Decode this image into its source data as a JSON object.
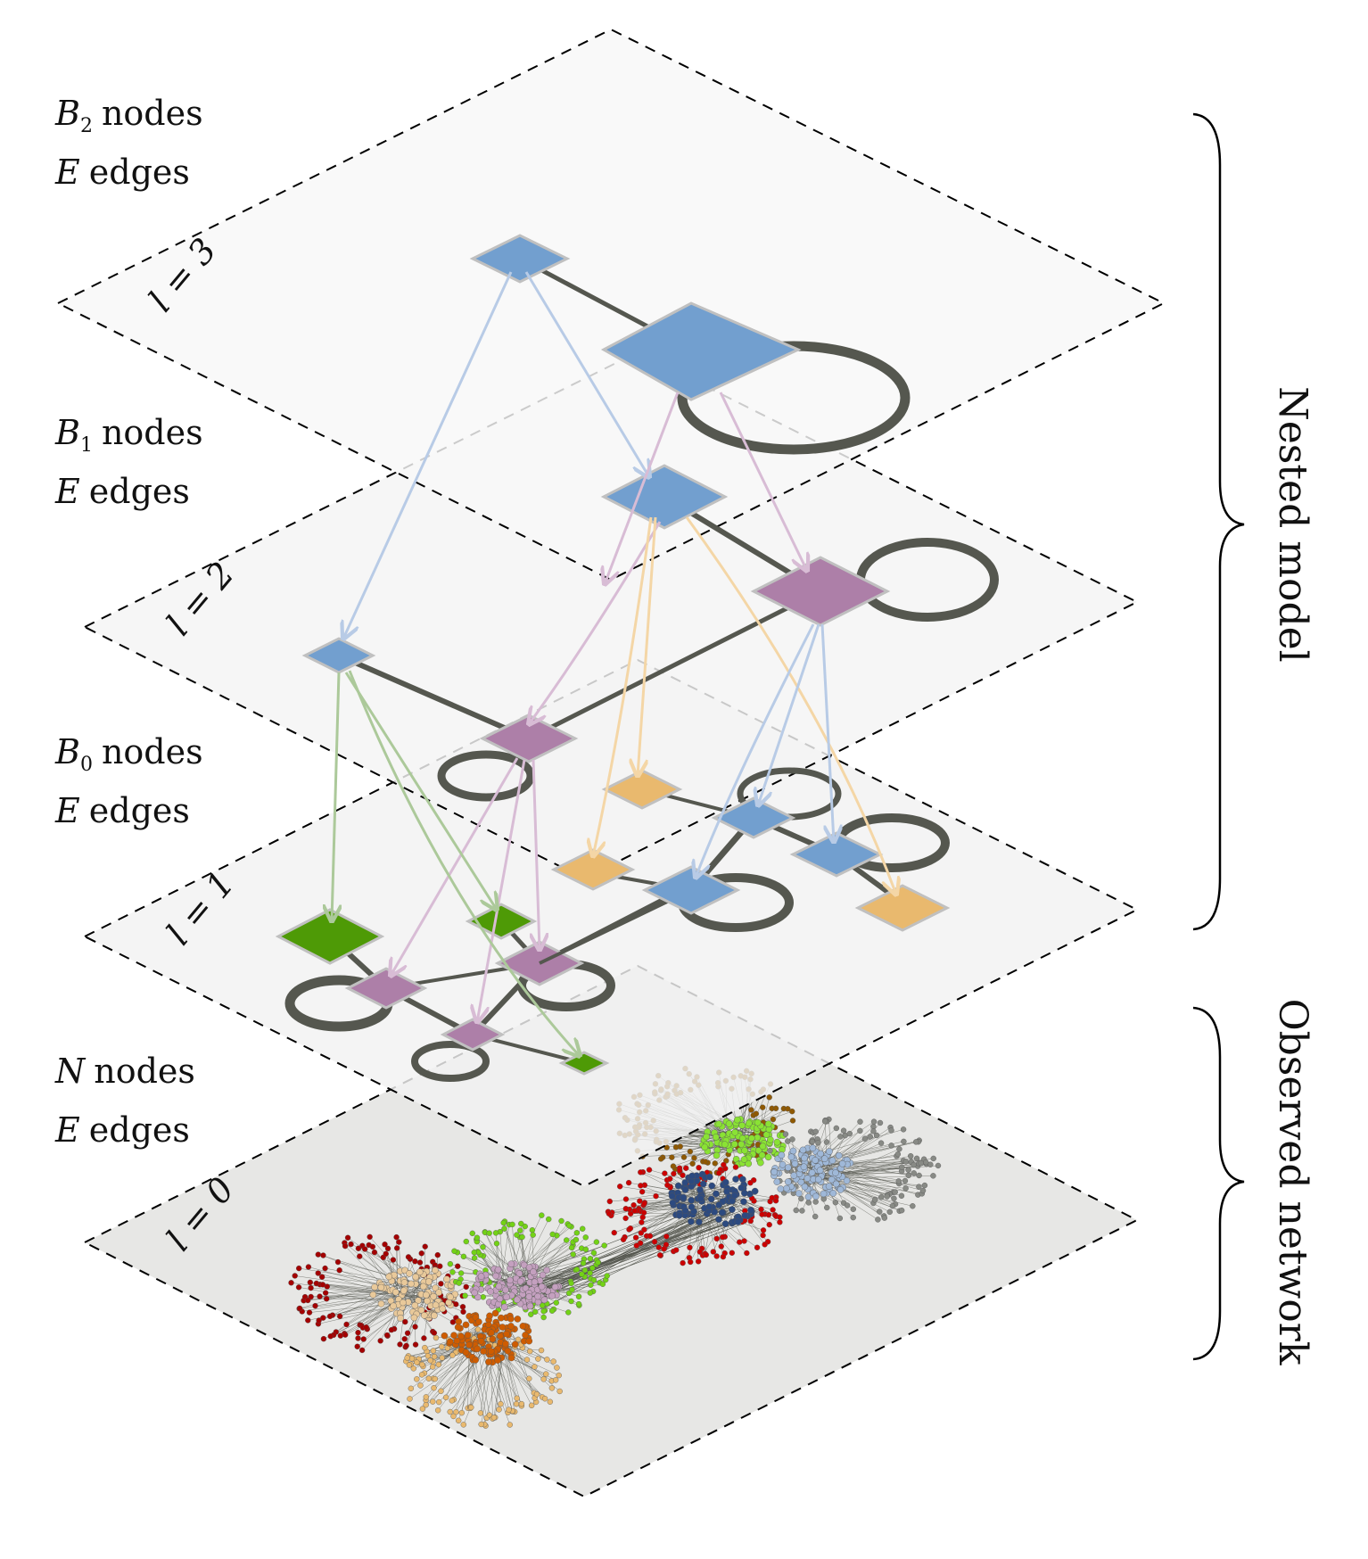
{
  "levels": [
    {
      "level_label": "l = 3",
      "symbol": "B",
      "subscript": "2",
      "nodes_label": "nodes",
      "edges_symbol": "E",
      "edges_label": "edges"
    },
    {
      "level_label": "l = 2",
      "symbol": "B",
      "subscript": "1",
      "nodes_label": "nodes",
      "edges_symbol": "E",
      "edges_label": "edges"
    },
    {
      "level_label": "l = 1",
      "symbol": "B",
      "subscript": "0",
      "nodes_label": "nodes",
      "edges_symbol": "E",
      "edges_label": "edges"
    },
    {
      "level_label": "l = 0",
      "symbol": "N",
      "subscript": "",
      "nodes_label": "nodes",
      "edges_symbol": "E",
      "edges_label": "edges"
    }
  ],
  "brackets": {
    "nested": "Nested model",
    "observed": "Observed network"
  },
  "colors": {
    "blue": "#729fcf",
    "purple": "#ad7fa8",
    "orange": "#e9b96e",
    "green": "#4e9a06",
    "edge": "#55574f",
    "plane_top": "#f8f8f8",
    "plane_mid": "#f4f4f4",
    "plane_low": "#f1f1f1",
    "plane_base": "#e6e6e4"
  },
  "clusters": [
    {
      "color": "#8f5902",
      "role": "peripheral"
    },
    {
      "color": "#8ae234",
      "role": "core"
    },
    {
      "color": "#888a85",
      "role": "peripheral"
    },
    {
      "color": "#9fb8d8",
      "role": "core"
    },
    {
      "color": "#cc0000",
      "role": "peripheral"
    },
    {
      "color": "#2c4a80",
      "role": "core"
    },
    {
      "color": "#a40000",
      "role": "peripheral"
    },
    {
      "color": "#e9c99a",
      "role": "core"
    },
    {
      "color": "#73d216",
      "role": "peripheral"
    },
    {
      "color": "#c4a0bf",
      "role": "core"
    },
    {
      "color": "#e9b96e",
      "role": "peripheral"
    },
    {
      "color": "#ce5c00",
      "role": "core"
    }
  ]
}
